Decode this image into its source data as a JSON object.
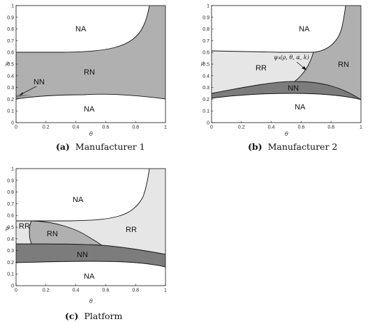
{
  "panels": [
    {
      "tag": "(a)",
      "caption": "Manufacturer 1",
      "xlabel": "θ",
      "ylabel": "ρ",
      "xticks": [
        "0",
        "0.2",
        "0.4",
        "0.6",
        "0.8",
        "1"
      ],
      "yticks": [
        "0",
        "0.1",
        "0.2",
        "0.3",
        "0.4",
        "0.5",
        "0.6",
        "0.7",
        "0.8",
        "0.9",
        "1"
      ],
      "labels": {
        "na_top": "NA",
        "rn": "RN",
        "nn": "NN",
        "na_bottom": "NA"
      }
    },
    {
      "tag": "(b)",
      "caption": "Manufacturer 2",
      "xlabel": "θ",
      "ylabel": "ρ",
      "xticks": [
        "0",
        "0.2",
        "0.4",
        "0.6",
        "0.8",
        "1"
      ],
      "yticks": [
        "0",
        "0.1",
        "0.2",
        "0.3",
        "0.4",
        "0.5",
        "0.6",
        "0.7",
        "0.8",
        "0.9",
        "1"
      ],
      "labels": {
        "na_top": "NA",
        "rr": "RR",
        "rn": "RN",
        "nn": "NN",
        "na_bottom": "NA",
        "psi": "ψ₄(ρ, θ, α, k)"
      }
    },
    {
      "tag": "(c)",
      "caption": "Platform",
      "xlabel": "θ",
      "ylabel": "ρ",
      "xticks": [
        "0",
        "0.2",
        "0.4",
        "0.6",
        "0.8",
        "1"
      ],
      "yticks": [
        "0",
        "0.1",
        "0.2",
        "0.3",
        "0.4",
        "0.5",
        "0.6",
        "0.7",
        "0.8",
        "0.9",
        "1"
      ],
      "labels": {
        "na_top": "NA",
        "rr_left": "RR",
        "rn": "RN",
        "rr_right": "RR",
        "nn": "NN",
        "na_bottom": "NA"
      }
    }
  ],
  "colors": {
    "white": "#ffffff",
    "light_gray": "#e6e6e6",
    "medium_gray": "#b0b0b0",
    "dark_gray": "#7c7c7c",
    "line": "#111111"
  }
}
